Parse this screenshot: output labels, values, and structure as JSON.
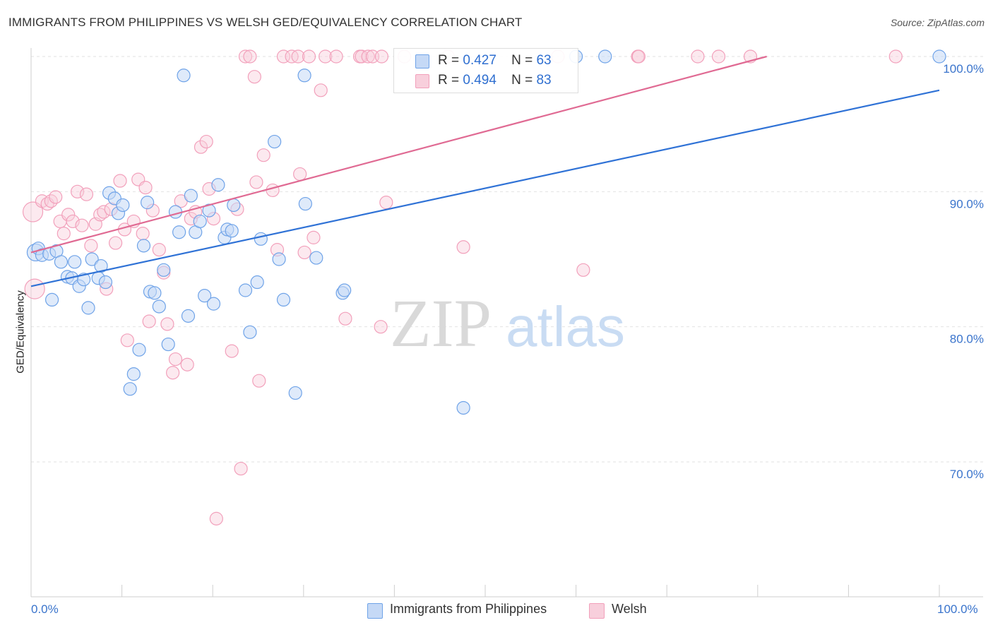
{
  "title": "IMMIGRANTS FROM PHILIPPINES VS WELSH GED/EQUIVALENCY CORRELATION CHART",
  "source": "Source: ZipAtlas.com",
  "watermark": {
    "zip": "ZIP",
    "atlas": "atlas"
  },
  "legend": {
    "r_label": "R =",
    "n_label": "N =",
    "series1": {
      "r": "0.427",
      "n": "63"
    },
    "series2": {
      "r": "0.494",
      "n": "83"
    }
  },
  "x_axis": {
    "min_label": "0.0%",
    "max_label": "100.0%"
  },
  "y_axis": {
    "label": "GED/Equivalency"
  },
  "bottom_legend": {
    "series1": "Immigrants from Philippines",
    "series2": "Welsh"
  },
  "colors": {
    "blue": "#6fa3e8",
    "blue_line": "#2f72d6",
    "pink": "#f2a0bb",
    "pink_line": "#e06a93",
    "tick_text": "#3a74cc"
  },
  "chart_data": {
    "type": "scatter",
    "xlim": [
      0,
      100
    ],
    "ylim": [
      60.5,
      100.5
    ],
    "yticks": [
      {
        "value": 70,
        "label": "70.0%"
      },
      {
        "value": 80,
        "label": "80.0%"
      },
      {
        "value": 90,
        "label": "90.0%"
      },
      {
        "value": 100,
        "label": "100.0%"
      }
    ],
    "grid": true,
    "series": [
      {
        "name": "Immigrants from Philippines",
        "trend": [
          [
            0,
            83.0
          ],
          [
            100,
            97.5
          ]
        ],
        "points": [
          [
            0.5,
            85.5
          ],
          [
            0.8,
            85.8
          ],
          [
            1.2,
            85.3
          ],
          [
            2,
            85.4
          ],
          [
            2.3,
            82
          ],
          [
            2.8,
            85.6
          ],
          [
            3.3,
            84.8
          ],
          [
            4,
            83.7
          ],
          [
            4.5,
            83.6
          ],
          [
            4.8,
            84.8
          ],
          [
            5.3,
            83
          ],
          [
            5.8,
            83.5
          ],
          [
            6.3,
            81.4
          ],
          [
            6.7,
            85
          ],
          [
            7.4,
            83.6
          ],
          [
            7.7,
            84.5
          ],
          [
            8.2,
            83.3
          ],
          [
            8.6,
            89.9
          ],
          [
            9.2,
            89.5
          ],
          [
            9.6,
            88.4
          ],
          [
            10.1,
            89.0
          ],
          [
            10.9,
            75.4
          ],
          [
            11.3,
            76.5
          ],
          [
            11.9,
            78.3
          ],
          [
            12.4,
            86.0
          ],
          [
            12.8,
            89.2
          ],
          [
            13.1,
            82.6
          ],
          [
            13.6,
            82.5
          ],
          [
            14.1,
            81.5
          ],
          [
            14.6,
            84.2
          ],
          [
            15.1,
            78.7
          ],
          [
            15.9,
            88.5
          ],
          [
            16.3,
            87.0
          ],
          [
            16.8,
            98.6
          ],
          [
            17.3,
            80.8
          ],
          [
            17.6,
            89.7
          ],
          [
            18.1,
            87.0
          ],
          [
            18.6,
            87.8
          ],
          [
            19.1,
            82.3
          ],
          [
            19.6,
            88.6
          ],
          [
            20.1,
            81.7
          ],
          [
            20.6,
            90.5
          ],
          [
            21.3,
            86.6
          ],
          [
            21.6,
            87.2
          ],
          [
            22.1,
            87.1
          ],
          [
            22.3,
            89.0
          ],
          [
            23.6,
            82.7
          ],
          [
            24.1,
            79.6
          ],
          [
            24.9,
            83.3
          ],
          [
            25.3,
            86.5
          ],
          [
            26.8,
            93.7
          ],
          [
            27.3,
            85.0
          ],
          [
            27.8,
            82.0
          ],
          [
            29.1,
            75.1
          ],
          [
            30.1,
            98.6
          ],
          [
            30.2,
            89.1
          ],
          [
            31.4,
            85.1
          ],
          [
            34.3,
            82.5
          ],
          [
            34.5,
            82.7
          ],
          [
            47.6,
            74.0
          ],
          [
            60.0,
            100
          ],
          [
            63.2,
            100
          ],
          [
            100,
            100
          ]
        ]
      },
      {
        "name": "Welsh",
        "trend": [
          [
            0,
            85.5
          ],
          [
            81,
            100
          ]
        ],
        "points": [
          [
            0.2,
            88.5
          ],
          [
            0.4,
            82.8
          ],
          [
            1.2,
            89.3
          ],
          [
            1.8,
            89.1
          ],
          [
            2.2,
            89.3
          ],
          [
            2.7,
            89.6
          ],
          [
            3.2,
            87.8
          ],
          [
            3.6,
            86.9
          ],
          [
            4.1,
            88.3
          ],
          [
            4.6,
            87.8
          ],
          [
            5.1,
            90.0
          ],
          [
            5.6,
            87.5
          ],
          [
            6.1,
            89.8
          ],
          [
            6.6,
            86.0
          ],
          [
            7.1,
            87.6
          ],
          [
            7.6,
            88.3
          ],
          [
            8.0,
            88.5
          ],
          [
            8.3,
            82.8
          ],
          [
            8.8,
            88.7
          ],
          [
            9.3,
            86.2
          ],
          [
            9.8,
            90.8
          ],
          [
            10.3,
            87.2
          ],
          [
            10.6,
            79.0
          ],
          [
            11.3,
            87.8
          ],
          [
            11.8,
            90.9
          ],
          [
            12.3,
            86.9
          ],
          [
            12.6,
            90.3
          ],
          [
            13.0,
            80.4
          ],
          [
            13.4,
            88.6
          ],
          [
            14.1,
            85.7
          ],
          [
            14.6,
            84.0
          ],
          [
            15.0,
            80.2
          ],
          [
            15.6,
            76.6
          ],
          [
            15.9,
            77.6
          ],
          [
            16.5,
            89.3
          ],
          [
            17.2,
            77.2
          ],
          [
            17.6,
            88.0
          ],
          [
            18.1,
            88.5
          ],
          [
            18.7,
            93.3
          ],
          [
            19.3,
            93.7
          ],
          [
            19.6,
            90.2
          ],
          [
            20.1,
            88.0
          ],
          [
            20.4,
            65.8
          ],
          [
            22.1,
            78.2
          ],
          [
            22.7,
            88.7
          ],
          [
            23.1,
            69.5
          ],
          [
            23.6,
            100
          ],
          [
            24.1,
            100
          ],
          [
            24.6,
            98.5
          ],
          [
            24.8,
            90.7
          ],
          [
            25.1,
            76.0
          ],
          [
            25.6,
            92.7
          ],
          [
            26.6,
            90.1
          ],
          [
            27.1,
            85.7
          ],
          [
            27.8,
            100
          ],
          [
            28.7,
            100
          ],
          [
            29.4,
            100
          ],
          [
            29.6,
            91.3
          ],
          [
            30.1,
            85.5
          ],
          [
            30.6,
            100
          ],
          [
            31.1,
            86.6
          ],
          [
            31.9,
            97.5
          ],
          [
            32.4,
            100
          ],
          [
            33.6,
            100
          ],
          [
            34.6,
            80.6
          ],
          [
            36.2,
            100
          ],
          [
            36.4,
            100
          ],
          [
            37.1,
            100
          ],
          [
            37.6,
            100
          ],
          [
            38.5,
            80.0
          ],
          [
            38.6,
            100
          ],
          [
            39.1,
            89.2
          ],
          [
            41.1,
            100
          ],
          [
            45.9,
            100
          ],
          [
            47.6,
            85.9
          ],
          [
            58.0,
            100
          ],
          [
            60.8,
            84.2
          ],
          [
            66.8,
            100
          ],
          [
            66.9,
            100
          ],
          [
            73.4,
            100
          ],
          [
            75.7,
            100
          ],
          [
            79.2,
            100
          ],
          [
            95.2,
            100
          ]
        ]
      }
    ]
  }
}
